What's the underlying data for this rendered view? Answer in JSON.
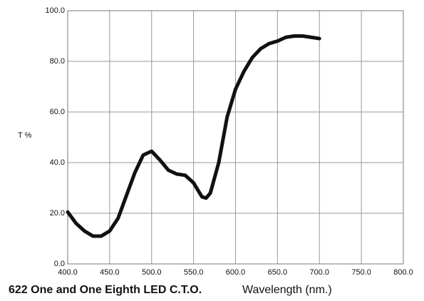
{
  "chart_data": {
    "type": "line",
    "title": "622 One and One Eighth LED C.T.O.",
    "x_label": "Wavelength (nm.)",
    "y_label": "T %",
    "x": [
      400,
      410,
      420,
      430,
      440,
      450,
      460,
      470,
      480,
      490,
      500,
      510,
      520,
      530,
      540,
      550,
      560,
      565,
      570,
      580,
      590,
      600,
      610,
      620,
      630,
      640,
      650,
      660,
      670,
      680,
      690,
      700
    ],
    "series": [
      {
        "name": "T %",
        "color": "#111111",
        "values": [
          20.5,
          16,
          13,
          11,
          11,
          13,
          18,
          27,
          36,
          43,
          44.5,
          41,
          37,
          35.5,
          35,
          32,
          26.5,
          26,
          28,
          40,
          58,
          69,
          76,
          81.5,
          85,
          87,
          88,
          89.5,
          90,
          90,
          89.5,
          89
        ]
      }
    ],
    "xlim": [
      400,
      800
    ],
    "xticks": [
      {
        "value": 400,
        "label": "400.0"
      },
      {
        "value": 450,
        "label": "450.0"
      },
      {
        "value": 500,
        "label": "500.0"
      },
      {
        "value": 550,
        "label": "550.0"
      },
      {
        "value": 600,
        "label": "600.0"
      },
      {
        "value": 650,
        "label": "650.0"
      },
      {
        "value": 700,
        "label": "700.0"
      },
      {
        "value": 750,
        "label": "750.0"
      },
      {
        "value": 800,
        "label": "800.0"
      }
    ],
    "ylim": [
      0,
      100
    ],
    "yticks": [
      {
        "value": 0,
        "label": "0.0"
      },
      {
        "value": 20,
        "label": "20.0"
      },
      {
        "value": 40,
        "label": "40.0"
      },
      {
        "value": 60,
        "label": "60.0"
      },
      {
        "value": 80,
        "label": "80.0"
      },
      {
        "value": 100,
        "label": "100.0"
      }
    ],
    "grid": true
  }
}
